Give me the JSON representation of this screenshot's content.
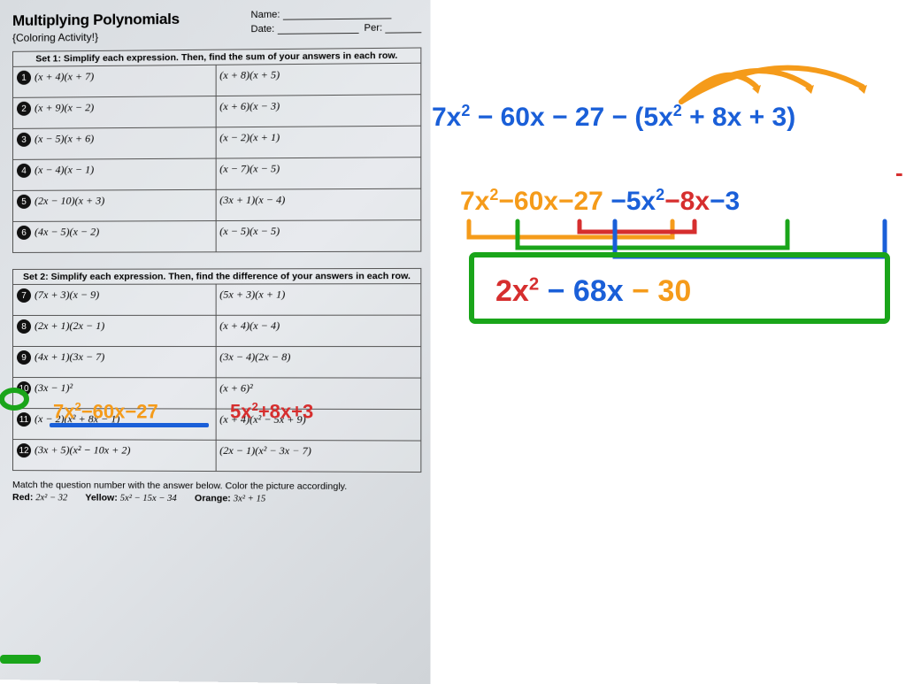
{
  "worksheet": {
    "title": "Multiplying Polynomials",
    "subtitle": "{Coloring Activity!}",
    "name_label": "Name:",
    "date_label": "Date:",
    "per_label": "Per:",
    "set1": {
      "header": "Set 1: Simplify each expression. Then, find the sum of your answers in each row.",
      "rows": [
        {
          "n": 1,
          "l": "(x + 4)(x + 7)",
          "r": "(x + 8)(x + 5)"
        },
        {
          "n": 2,
          "l": "(x + 9)(x − 2)",
          "r": "(x + 6)(x − 3)"
        },
        {
          "n": 3,
          "l": "(x − 5)(x + 6)",
          "r": "(x − 2)(x + 1)"
        },
        {
          "n": 4,
          "l": "(x − 4)(x − 1)",
          "r": "(x − 7)(x − 5)"
        },
        {
          "n": 5,
          "l": "(2x − 10)(x + 3)",
          "r": "(3x + 1)(x − 4)"
        },
        {
          "n": 6,
          "l": "(4x − 5)(x − 2)",
          "r": "(x − 5)(x − 5)"
        }
      ]
    },
    "set2": {
      "header": "Set 2: Simplify each expression. Then, find the difference of your answers in each row.",
      "rows": [
        {
          "n": 7,
          "l": "(7x + 3)(x − 9)",
          "r": "(5x + 3)(x + 1)"
        },
        {
          "n": 8,
          "l": "(2x + 1)(2x − 1)",
          "r": "(x + 4)(x − 4)"
        },
        {
          "n": 9,
          "l": "(4x + 1)(3x − 7)",
          "r": "(3x − 4)(2x − 8)"
        },
        {
          "n": 10,
          "l": "(3x − 1)²",
          "r": "(x + 6)²"
        },
        {
          "n": 11,
          "l": "(x − 2)(x² + 8x − 1)",
          "r": "(x + 4)(x² − 5x + 9)"
        },
        {
          "n": 12,
          "l": "(3x + 5)(x² − 10x + 2)",
          "r": "(2x − 1)(x² − 3x − 7)"
        }
      ]
    },
    "footer": {
      "match": "Match the question number with the answer below.  Color the picture accordingly.",
      "red_label": "Red:",
      "red_ans": "2x² − 32",
      "yel_label": "Yellow:",
      "yel_ans": "5x² − 15x − 34",
      "org_label": "Orange:",
      "org_ans": "3x² + 15"
    }
  },
  "annotations": {
    "line1_left": "7x² − 60x − 27 −",
    "line1_right": "(5x² + 8x + 3)",
    "line2": "7x² − 60x − 27 − 5x² − 8x − 3",
    "line2_parts": {
      "a": "7x²",
      "b": "−60x",
      "c": "−27",
      "d": "−5x²",
      "e": "−8x",
      "f": "−3"
    },
    "line3": "2x² − 68x − 30",
    "ws_ans_left": "7x² − 60x − 27",
    "ws_ans_right": "5x² + 8x + 3",
    "colors": {
      "blue": "#1a5fd8",
      "orange": "#f59b1a",
      "red": "#d62e2e",
      "green": "#1aa51a"
    },
    "font_size_large": 30,
    "font_size_small": 22
  }
}
